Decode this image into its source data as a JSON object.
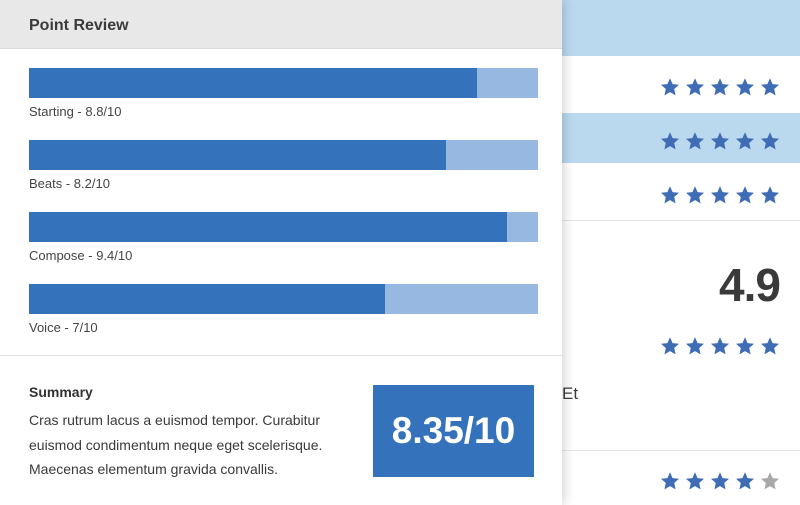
{
  "card": {
    "title": "Point Review",
    "reviews": [
      {
        "label": "Starting - 8.8/10",
        "score": 8.8,
        "max": 10
      },
      {
        "label": "Beats - 8.2/10",
        "score": 8.2,
        "max": 10
      },
      {
        "label": "Compose - 9.4/10",
        "score": 9.4,
        "max": 10
      },
      {
        "label": "Voice - 7/10",
        "score": 7,
        "max": 10
      }
    ],
    "summary_title": "Summary",
    "summary_lines": [
      "Cras rutrum lacus a euismod tempor. Curabitur",
      "euismod condimentum neque eget scelerisque.",
      "Maecenas elementum gravida convallis."
    ],
    "total_score": "8.35/10"
  },
  "background": {
    "rating_rows": [
      {
        "stars_filled": 5,
        "stars_total": 5
      },
      {
        "stars_filled": 5,
        "stars_total": 5
      },
      {
        "stars_filled": 5,
        "stars_total": 5
      }
    ],
    "big_score": "4.9",
    "big_score_stars": {
      "stars_filled": 5,
      "stars_total": 5
    },
    "partial_text": "Et",
    "bottom_row_stars": {
      "stars_filled": 4,
      "stars_total": 5
    }
  },
  "colors": {
    "accent": "#3473bb",
    "accent_light": "#97b8e0",
    "band_blue": "#bad8ee",
    "star_filled": "#3f6db5",
    "star_empty": "#a8a8a8"
  },
  "icons": {
    "star": "star-icon"
  }
}
